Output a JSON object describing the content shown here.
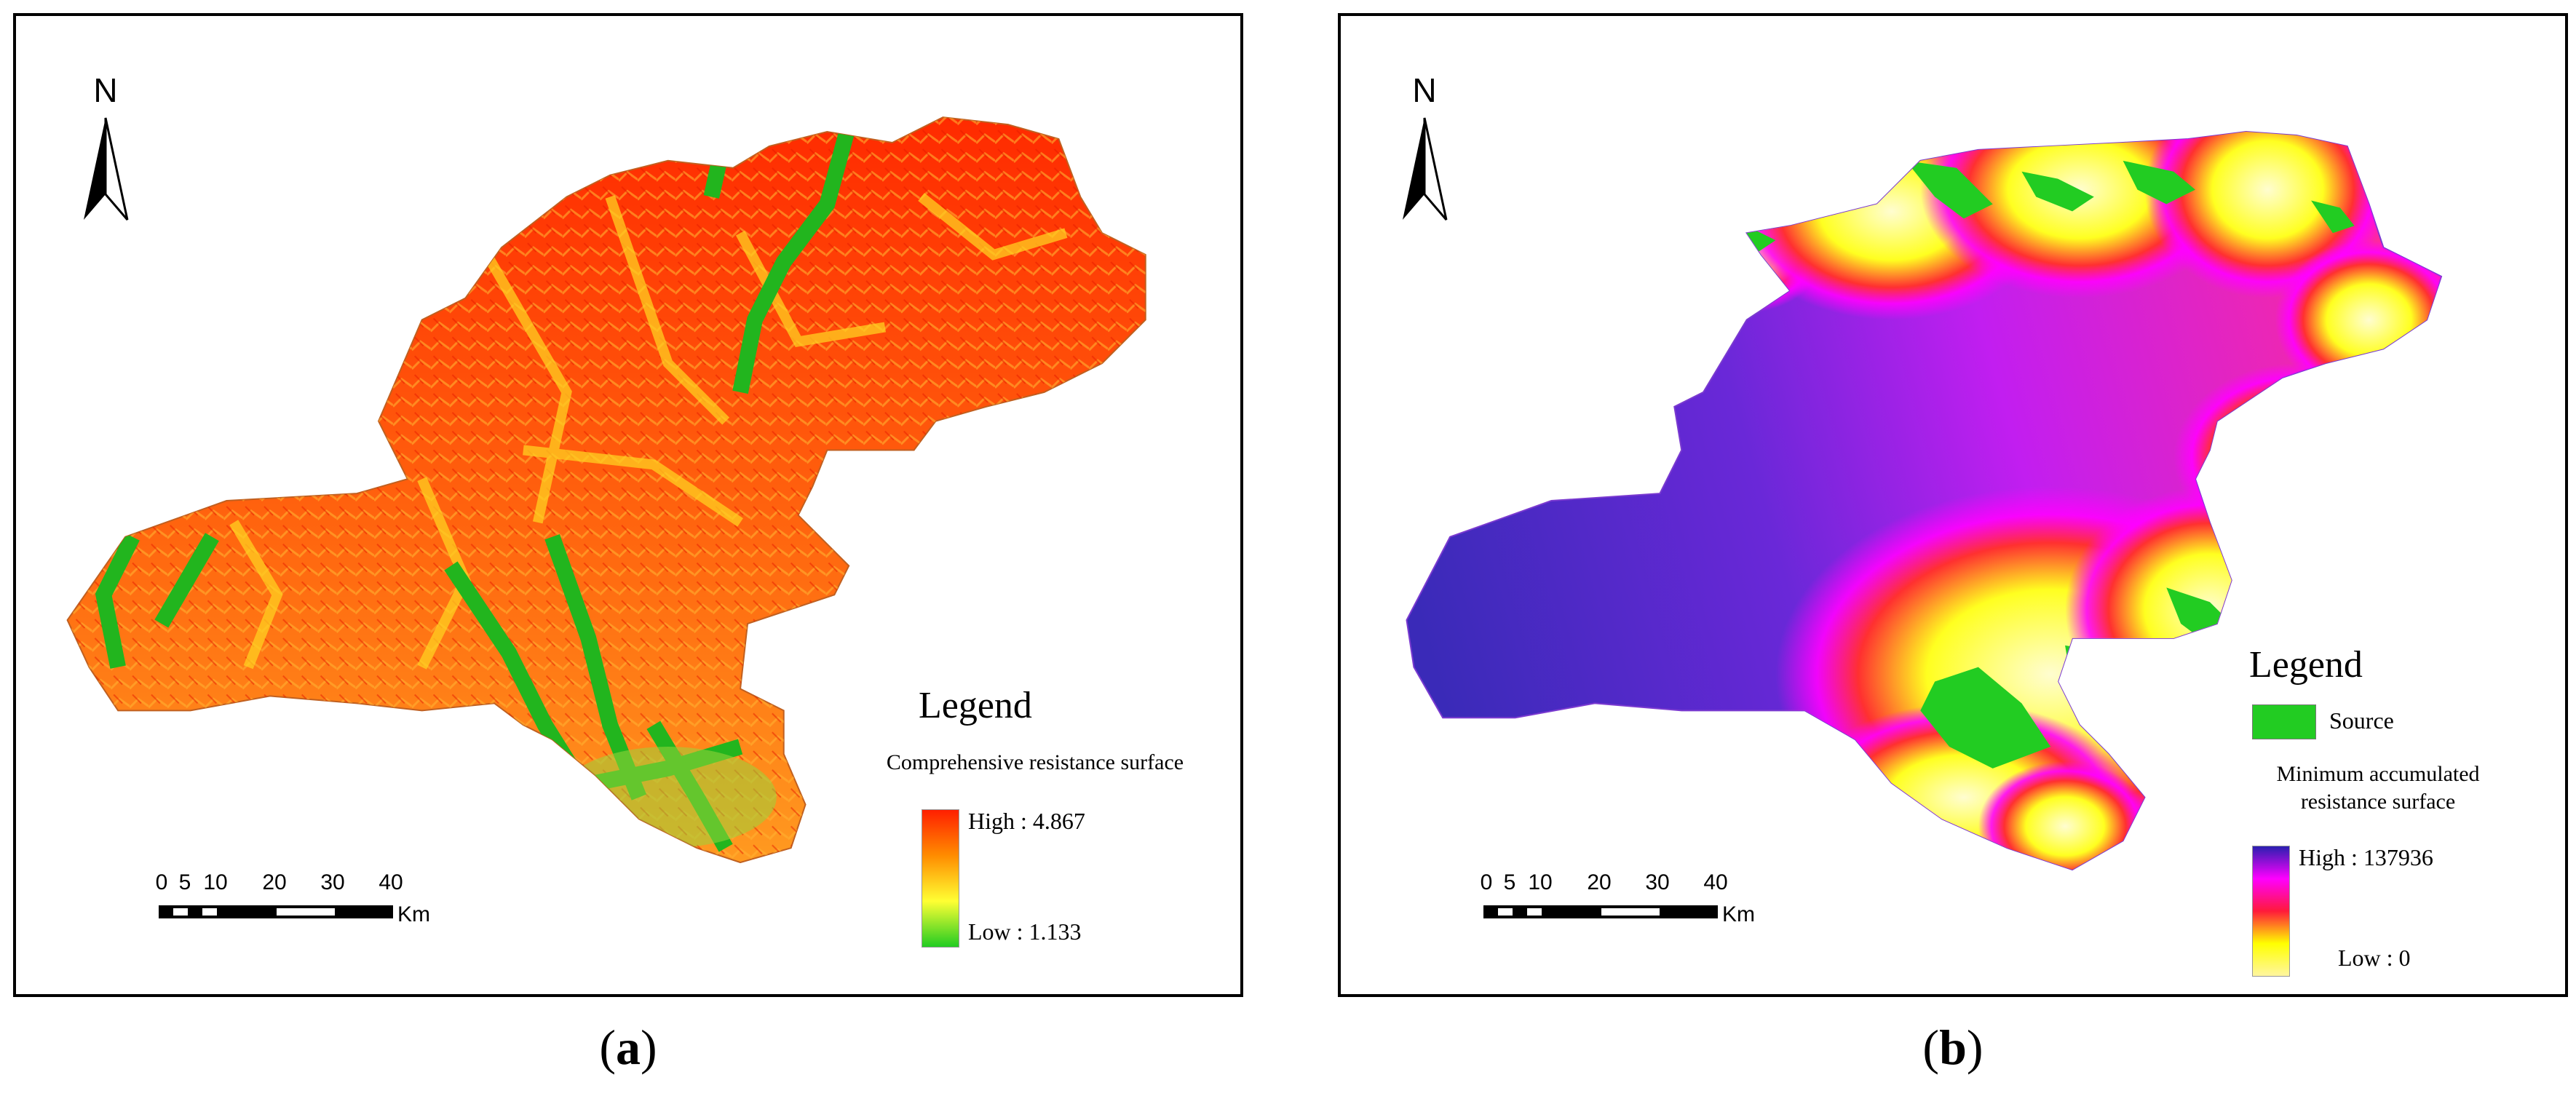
{
  "panel_a": {
    "north": "N",
    "legend": {
      "title": "Legend",
      "subtitle": "Comprehensive resistance surface",
      "high": "High : 4.867",
      "low": "Low : 1.133",
      "ramp_colors": [
        "#ff1f00",
        "#ff8c00",
        "#ffff33",
        "#22cc22"
      ]
    },
    "scale": {
      "ticks": [
        "0",
        "5",
        "10",
        "20",
        "30",
        "40"
      ],
      "unit": "Km"
    },
    "caption": {
      "open": "(",
      "letter": "a",
      "close": ")"
    }
  },
  "panel_b": {
    "north": "N",
    "legend": {
      "title": "Legend",
      "source_label": "Source",
      "subtitle_line1": "Minimum accumulated",
      "subtitle_line2": "resistance surface",
      "high": "High : 137936",
      "low": "Low : 0",
      "ramp_colors": [
        "#2a1fb0",
        "#ff00ff",
        "#ff1a3a",
        "#ffff00",
        "#fff6a0"
      ],
      "source_color": "#22cc22"
    },
    "scale": {
      "ticks": [
        "0",
        "5",
        "10",
        "20",
        "30",
        "40"
      ],
      "unit": "Km"
    },
    "caption": {
      "open": "(",
      "letter": "b",
      "close": ")"
    }
  }
}
